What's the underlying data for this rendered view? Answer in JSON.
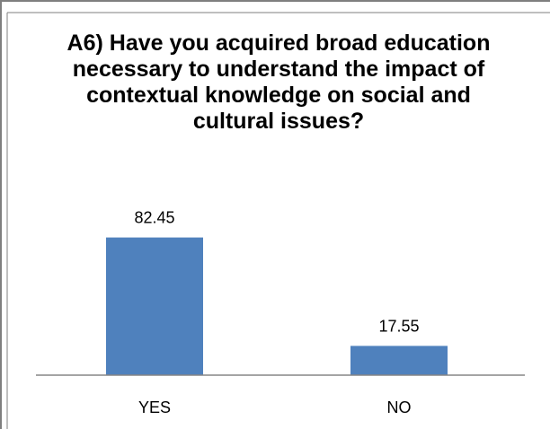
{
  "chart_data": {
    "type": "bar",
    "title": "A6) Have you acquired broad education necessary to understand the impact of contextual knowledge on social and cultural issues?",
    "categories": [
      "YES",
      "NO"
    ],
    "values": [
      82.45,
      17.55
    ],
    "data_labels": [
      "82.45",
      "17.55"
    ],
    "xlabel": "",
    "ylabel": "",
    "ylim": [
      0,
      100
    ],
    "grid": false,
    "legend": "none",
    "bar_color": "#4F81BD",
    "axis_color": "#868686",
    "border_color": "#7F7F7F"
  }
}
